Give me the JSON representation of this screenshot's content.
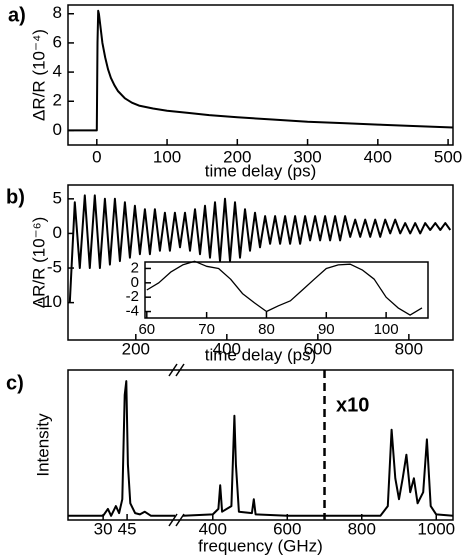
{
  "chart_data": [
    {
      "type": "line",
      "panel_label": "a)",
      "xlabel": "time delay (ps)",
      "ylabel": "ΔR/R (10⁻⁴)",
      "color": "#000000",
      "x": [
        -41,
        -1,
        0,
        1,
        2,
        3,
        5,
        8,
        12,
        16,
        20,
        25,
        30,
        40,
        50,
        60,
        80,
        100,
        130,
        160,
        200,
        250,
        300,
        350,
        400,
        450,
        507
      ],
      "values": [
        0,
        0,
        0,
        6,
        8.2,
        8.0,
        7.2,
        6.0,
        5.0,
        4.2,
        3.6,
        3.1,
        2.7,
        2.2,
        1.9,
        1.7,
        1.5,
        1.35,
        1.2,
        1.05,
        0.9,
        0.75,
        0.6,
        0.5,
        0.4,
        0.3,
        0.2
      ],
      "xlim": [
        -41,
        507
      ],
      "xticks": [
        0,
        100,
        200,
        300,
        400,
        500
      ],
      "ylim": [
        -1,
        8.6
      ],
      "yticks": [
        0,
        2,
        4,
        6,
        8
      ]
    },
    {
      "type": "line",
      "panel_label": "b)",
      "xlabel": "time delay (ps)",
      "ylabel": "ΔR/R (10⁻⁶)",
      "color": "#000000",
      "x": [
        55,
        66,
        77,
        88,
        99,
        110,
        121,
        132,
        143,
        154,
        165,
        176,
        187,
        198,
        209,
        220,
        231,
        242,
        253,
        264,
        275,
        286,
        297,
        308,
        319,
        330,
        341,
        352,
        363,
        374,
        385,
        396,
        407,
        418,
        429,
        440,
        451,
        462,
        473,
        484,
        495,
        506,
        517,
        528,
        539,
        550,
        561,
        572,
        583,
        594,
        605,
        616,
        627,
        638,
        649,
        660,
        671,
        682,
        693,
        704,
        715,
        726,
        737,
        748,
        759,
        770,
        781,
        792,
        803,
        814,
        825,
        836,
        847,
        858,
        869,
        880,
        891
      ],
      "values": [
        -10,
        4.5,
        -5,
        5.5,
        -5,
        5.5,
        -5,
        5,
        -4.5,
        5,
        -4,
        4.5,
        -3.5,
        4,
        -3,
        3.5,
        -3,
        3.5,
        -2.5,
        3,
        -2.5,
        3,
        -2,
        3,
        -2.5,
        3.5,
        -3,
        4,
        -3.5,
        4.5,
        -4,
        5,
        -4,
        4.5,
        -3.5,
        3.5,
        -2.5,
        3,
        -2,
        2.5,
        -1.5,
        2.5,
        -1.5,
        2.5,
        -1.5,
        2.5,
        -1.5,
        2.5,
        -1,
        2.5,
        -1,
        2.5,
        -1,
        2.5,
        -1,
        2.5,
        -0.5,
        2,
        -0.5,
        2,
        -0.5,
        2,
        -0.5,
        2,
        0,
        2,
        0,
        1.5,
        0,
        1.5,
        0,
        1.5,
        0.5,
        1.5,
        0.5,
        1.5,
        0.5
      ],
      "xlim": [
        51,
        897
      ],
      "xticks": [
        200,
        400,
        600,
        800
      ],
      "ylim": [
        -15.4,
        7
      ],
      "yticks": [
        -10,
        -5,
        0,
        5
      ]
    },
    {
      "type": "line",
      "color": "#000000",
      "x": [
        60,
        62,
        64,
        66,
        68,
        70,
        72,
        74,
        76,
        78,
        80,
        82,
        84,
        86,
        88,
        90,
        92,
        94,
        96,
        98,
        100,
        102,
        104,
        106
      ],
      "values": [
        -1,
        0,
        1.5,
        2.5,
        3,
        2.3,
        2,
        0.5,
        -1.5,
        -2.8,
        -4,
        -3.2,
        -2.5,
        -1,
        0.5,
        2,
        2.5,
        2.6,
        1.8,
        0.5,
        -2,
        -3.5,
        -4.5,
        -3.5
      ],
      "xlim": [
        59.7,
        107
      ],
      "xticks": [
        60,
        70,
        80,
        90,
        100
      ],
      "ylim": [
        -4.9,
        2.9
      ],
      "yticks": [
        -4,
        -2,
        0,
        2
      ]
    },
    {
      "type": "line",
      "panel_label": "c)",
      "xlabel": "frequency (GHz)",
      "ylabel": "Intensity",
      "color": "#000000",
      "annotation": "x10",
      "vline": 700,
      "x": [
        8,
        30,
        33,
        35,
        38,
        40,
        42,
        43.5,
        44.5,
        45.5,
        47,
        50,
        53,
        56,
        60,
        75,
        320,
        400,
        415,
        420,
        425,
        450,
        458,
        462,
        470,
        505,
        510,
        515,
        600,
        700,
        850,
        870,
        880,
        890,
        900,
        910,
        920,
        930,
        940,
        950,
        965,
        975,
        985,
        1000,
        1045
      ],
      "values": [
        0.03,
        0.03,
        0.08,
        0.03,
        0.1,
        0.05,
        0.15,
        0.9,
        1.0,
        0.4,
        0.12,
        0.05,
        0.04,
        0.06,
        0.03,
        0.03,
        0.03,
        0.04,
        0.08,
        0.25,
        0.06,
        0.1,
        0.75,
        0.4,
        0.06,
        0.05,
        0.15,
        0.04,
        0.03,
        0.03,
        0.03,
        0.1,
        0.65,
        0.3,
        0.15,
        0.3,
        0.47,
        0.2,
        0.3,
        0.12,
        0.2,
        0.58,
        0.1,
        0.04,
        0.03
      ],
      "xlim": [
        [
          8,
          75
        ],
        [
          320,
          1045
        ]
      ],
      "xticks": [
        30,
        45,
        400,
        600,
        800,
        1000
      ],
      "ylim": [
        0,
        1.08
      ]
    }
  ]
}
